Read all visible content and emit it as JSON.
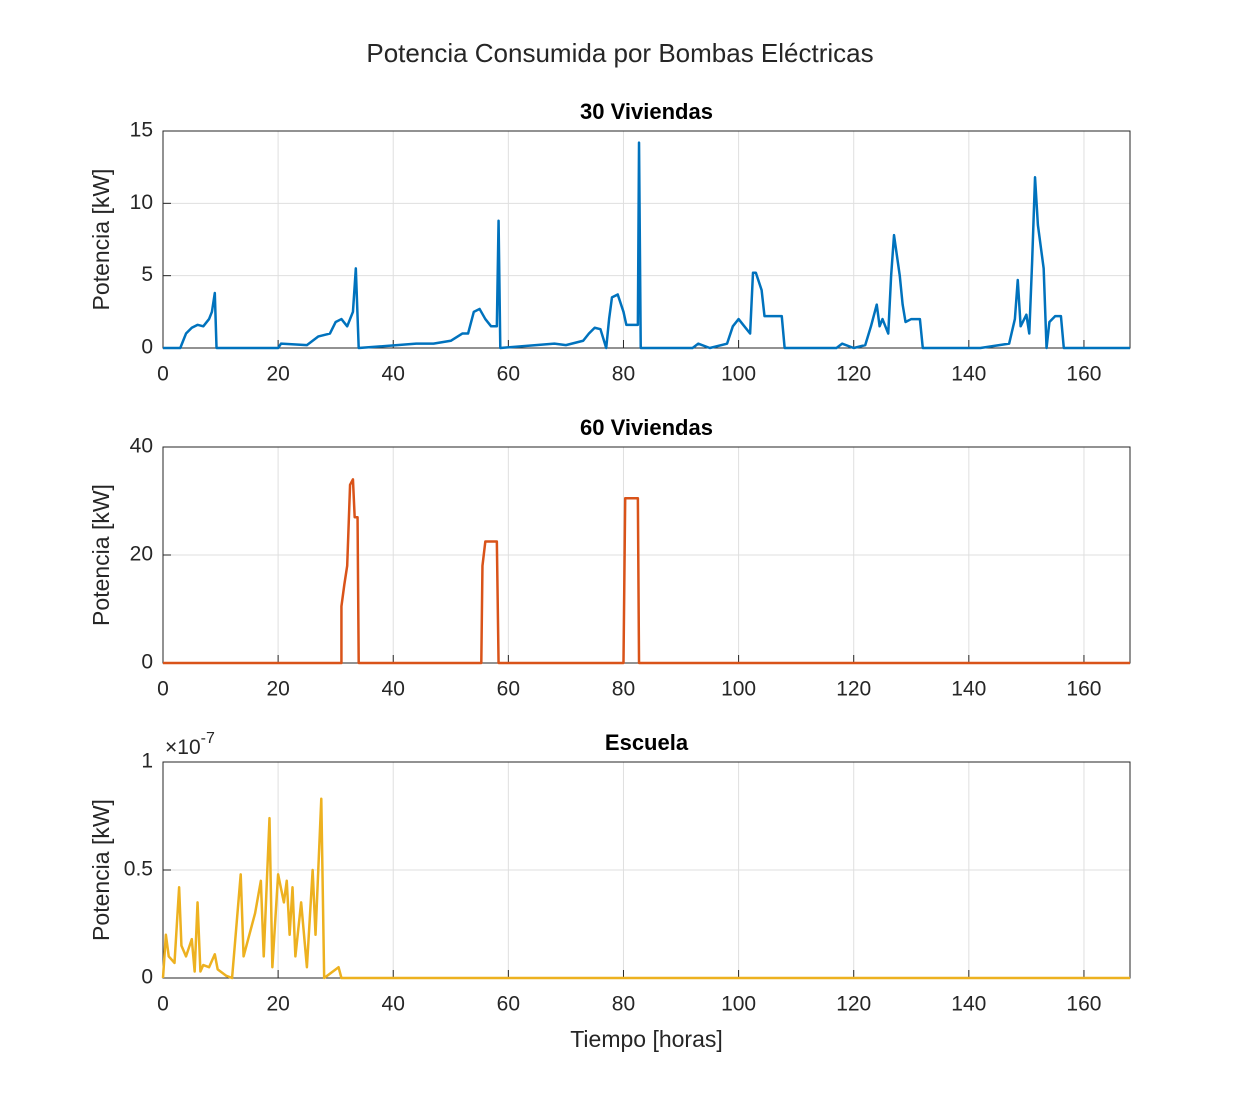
{
  "title": "Potencia Consumida por Bombas Eléctricas",
  "chart_data": [
    {
      "type": "line",
      "title": "30 Viviendas",
      "ylabel": "Potencia [kW]",
      "color": "#0072bd",
      "grid": true,
      "xlim": [
        0,
        168
      ],
      "xticks": [
        0,
        20,
        40,
        60,
        80,
        100,
        120,
        140,
        160
      ],
      "ylim": [
        0,
        15
      ],
      "yticks": [
        0,
        5,
        10,
        15
      ],
      "x": [
        0,
        3,
        3.5,
        4,
        5,
        6,
        7,
        8,
        8.5,
        9,
        9.3,
        20,
        20.5,
        25,
        27,
        29,
        30,
        31,
        32,
        33,
        33.5,
        34,
        44,
        47,
        50,
        52,
        53,
        54,
        55,
        56,
        57,
        58,
        58.3,
        58.6,
        68,
        70,
        73,
        74,
        75,
        76,
        77,
        77.5,
        78,
        79,
        80,
        80.5,
        82.5,
        82.7,
        83,
        92,
        93,
        95,
        98,
        99,
        100,
        101,
        102,
        102.5,
        103,
        104,
        104.5,
        107.5,
        108,
        117,
        118,
        120,
        122,
        123,
        124,
        124.5,
        125,
        126,
        126.5,
        127,
        128,
        128.5,
        129,
        130,
        131.5,
        132,
        142,
        147,
        148,
        148.5,
        149,
        150,
        150.5,
        151,
        151.5,
        152,
        153,
        153.5,
        154,
        155,
        156,
        156.5,
        168
      ],
      "values": [
        0,
        0,
        0.5,
        1,
        1.4,
        1.6,
        1.5,
        2,
        2.5,
        3.8,
        0,
        0,
        0.3,
        0.2,
        0.8,
        1,
        1.8,
        2,
        1.5,
        2.5,
        5.5,
        0,
        0.3,
        0.3,
        0.5,
        1,
        1,
        2.5,
        2.7,
        2,
        1.5,
        1.5,
        8.8,
        0,
        0.3,
        0.2,
        0.5,
        1,
        1.4,
        1.3,
        0,
        2,
        3.5,
        3.7,
        2.5,
        1.6,
        1.6,
        14.2,
        0,
        0,
        0.3,
        0,
        0.3,
        1.5,
        2,
        1.5,
        1,
        5.2,
        5.2,
        4,
        2.2,
        2.2,
        0,
        0,
        0.3,
        0,
        0.2,
        1.5,
        3,
        1.5,
        2,
        1,
        5,
        7.8,
        5,
        3,
        1.8,
        2,
        2,
        0,
        0,
        0.3,
        2,
        4.7,
        1.5,
        2.3,
        1,
        6,
        11.8,
        8.5,
        5.5,
        0,
        1.8,
        2.2,
        2.2,
        0,
        0
      ]
    },
    {
      "type": "line",
      "title": "60 Viviendas",
      "ylabel": "Potencia [kW]",
      "color": "#d95319",
      "grid": true,
      "xlim": [
        0,
        168
      ],
      "xticks": [
        0,
        20,
        40,
        60,
        80,
        100,
        120,
        140,
        160
      ],
      "ylim": [
        0,
        40
      ],
      "yticks": [
        0,
        20,
        40
      ],
      "x": [
        0,
        31,
        31,
        31.5,
        32,
        32.5,
        33,
        33.3,
        33.8,
        34,
        55.3,
        55.5,
        56,
        58,
        58.3,
        80,
        80.3,
        82.5,
        82.7,
        168
      ],
      "values": [
        0,
        0,
        10.5,
        14.5,
        18,
        33,
        34,
        27,
        27,
        0,
        0,
        18,
        22.5,
        22.5,
        0,
        0,
        30.5,
        30.5,
        0,
        0
      ]
    },
    {
      "type": "line",
      "title": "Escuela",
      "ylabel": "Potencia [kW]",
      "xlabel": "Tiempo [horas]",
      "color": "#edb120",
      "grid": true,
      "exponent_label": {
        "base": "×10",
        "power": "-7"
      },
      "xlim": [
        0,
        168
      ],
      "xticks": [
        0,
        20,
        40,
        60,
        80,
        100,
        120,
        140,
        160
      ],
      "ylim": [
        0,
        1e-07
      ],
      "yticks": [
        0,
        {
          "value": 5e-08,
          "label": "0.5"
        },
        {
          "value": 1e-07,
          "label": "1"
        }
      ],
      "x": [
        0,
        0.5,
        1,
        2,
        2.8,
        3.2,
        4,
        5,
        5.5,
        6,
        6.5,
        7,
        8,
        9,
        9.5,
        11,
        12,
        13.5,
        14,
        15,
        16,
        17,
        17.5,
        18.5,
        19,
        20,
        21,
        21.5,
        22,
        22.5,
        23,
        24,
        25,
        26,
        26.5,
        27.5,
        28,
        30.5,
        31,
        168
      ],
      "values": [
        0,
        2e-08,
        1e-08,
        7e-09,
        4.2e-08,
        1.5e-08,
        1e-08,
        1.8e-08,
        3e-09,
        3.5e-08,
        3e-09,
        6e-09,
        5e-09,
        1.1e-08,
        4e-09,
        1e-09,
        0,
        4.8e-08,
        1e-08,
        2e-08,
        3e-08,
        4.5e-08,
        1e-08,
        7.4e-08,
        5e-09,
        4.8e-08,
        3.5e-08,
        4.5e-08,
        2e-08,
        4.2e-08,
        1e-08,
        3.5e-08,
        5e-09,
        5e-08,
        2e-08,
        8.3e-08,
        0,
        5e-09,
        0,
        0
      ]
    }
  ]
}
